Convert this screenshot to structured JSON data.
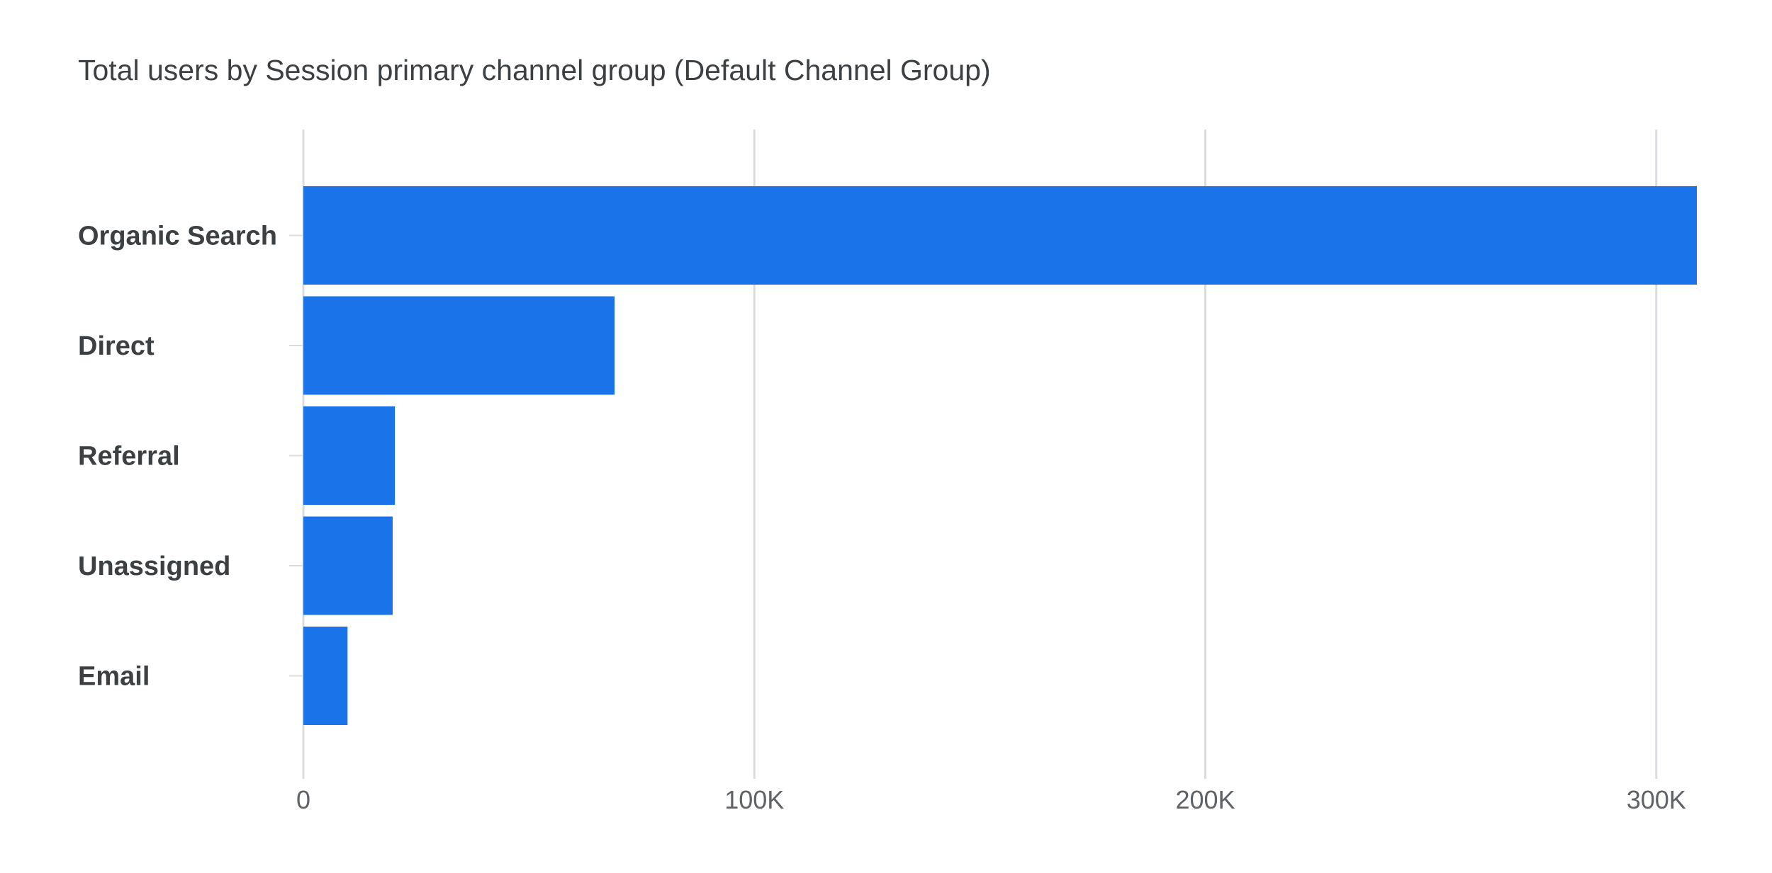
{
  "chart_data": {
    "type": "bar",
    "orientation": "horizontal",
    "title": "Total users by Session primary channel group (Default Channel Group)",
    "categories": [
      "Organic Search",
      "Direct",
      "Referral",
      "Unassigned",
      "Email"
    ],
    "values": [
      309000,
      69000,
      20300,
      19800,
      9800
    ],
    "xlim": [
      0,
      309000
    ],
    "xticks": [
      0,
      100000,
      200000,
      300000
    ],
    "xtick_labels": [
      "0",
      "100K",
      "200K",
      "300K"
    ],
    "grid": true,
    "legend": "none",
    "colors": {
      "bar": "#1a73e8",
      "grid": "#dadce0",
      "text": "#3c4043",
      "tick_text": "#5f6368"
    }
  }
}
